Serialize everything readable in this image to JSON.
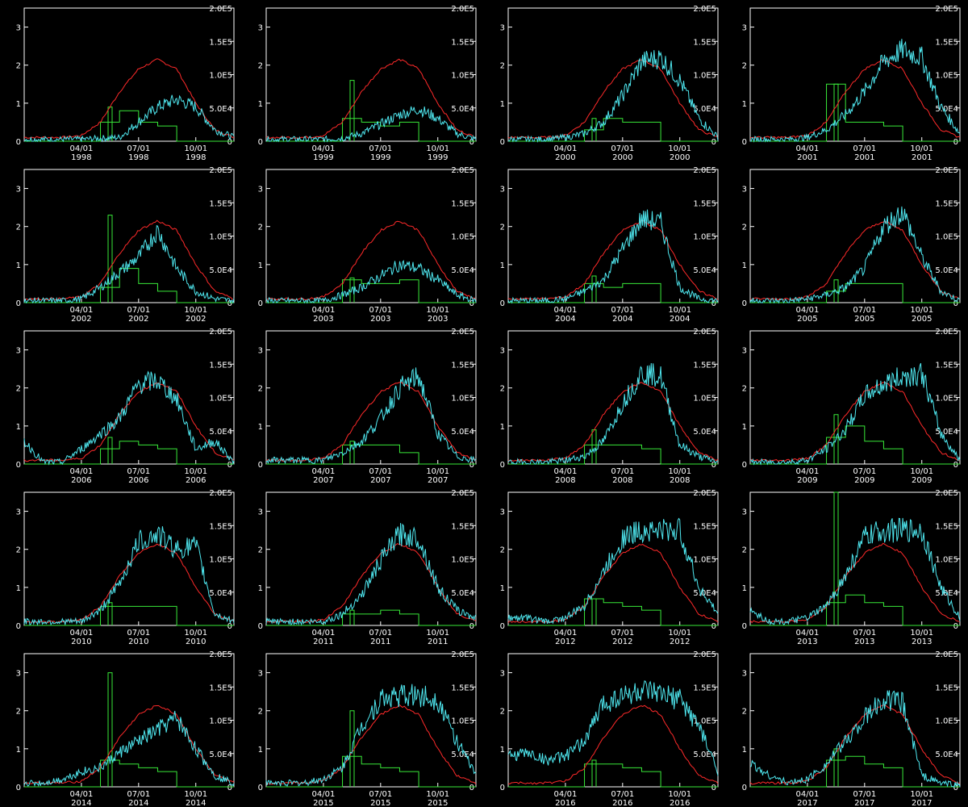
{
  "chart_data": {
    "type": "line",
    "layout": "grid of 20 panels, 4 columns x 5 rows",
    "left_axis": {
      "ylim": [
        0,
        3.5
      ],
      "ticks": [
        "0",
        "1",
        "2",
        "3"
      ]
    },
    "right_axis": {
      "ylim": [
        0,
        200000
      ],
      "ticks": [
        "0",
        "5.0E4",
        "1.0E5",
        "1.5E5",
        "2.0E5"
      ]
    },
    "x_axis": {
      "range_months": [
        1,
        12
      ],
      "tick_dates": [
        "04/01",
        "07/01",
        "10/01"
      ]
    },
    "series_colors": {
      "cyan": "#4fe8f0",
      "red": "#ff2a2a",
      "green": "#38e838"
    },
    "series_description": {
      "cyan": "noisy daily series, left axis units",
      "red": "smooth seasonal curve, left axis units",
      "green": "stepwise series, left axis units"
    },
    "panels": [
      {
        "year": "1998",
        "cyan": [
          0.05,
          0.05,
          0.05,
          0.05,
          0.08,
          0.1,
          0.5,
          0.9,
          1.1,
          0.9,
          0.3,
          0.1
        ],
        "red": [
          0.1,
          0.1,
          0.1,
          0.15,
          0.5,
          1.3,
          1.9,
          2.15,
          1.9,
          1.0,
          0.3,
          0.1
        ],
        "green": [
          0,
          0,
          0,
          0,
          0.5,
          0.8,
          0.5,
          0.4,
          0,
          0,
          0,
          0
        ],
        "green_spike": 0.9
      },
      {
        "year": "1999",
        "cyan": [
          0.05,
          0.05,
          0.05,
          0.05,
          0.08,
          0.2,
          0.45,
          0.7,
          0.85,
          0.6,
          0.2,
          0.05
        ],
        "red": [
          0.1,
          0.1,
          0.1,
          0.15,
          0.5,
          1.3,
          1.9,
          2.15,
          1.9,
          1.0,
          0.3,
          0.1
        ],
        "green": [
          0,
          0,
          0,
          0,
          0.6,
          0.5,
          0.4,
          0.5,
          0,
          0,
          0,
          0
        ],
        "green_spike": 1.6
      },
      {
        "year": "2000",
        "cyan": [
          0.05,
          0.05,
          0.05,
          0.1,
          0.2,
          0.5,
          1.2,
          2.1,
          2.2,
          1.6,
          0.6,
          0.1
        ],
        "red": [
          0.1,
          0.1,
          0.1,
          0.15,
          0.5,
          1.3,
          1.9,
          2.15,
          1.9,
          1.0,
          0.3,
          0.1
        ],
        "green": [
          0,
          0,
          0,
          0,
          0.3,
          0.6,
          0.5,
          0.5,
          0,
          0,
          0,
          0
        ],
        "green_spike": 0.6
      },
      {
        "year": "2001",
        "cyan": [
          0.05,
          0.05,
          0.05,
          0.1,
          0.3,
          0.7,
          1.3,
          2.1,
          2.4,
          2.2,
          0.9,
          0.2
        ],
        "red": [
          0.1,
          0.1,
          0.1,
          0.15,
          0.5,
          1.3,
          1.9,
          2.15,
          1.9,
          1.0,
          0.3,
          0.1
        ],
        "green": [
          0,
          0,
          0,
          0,
          1.5,
          0.5,
          0.5,
          0.4,
          0,
          0,
          0,
          0
        ],
        "green_spike": 1.5
      },
      {
        "year": "2002",
        "cyan": [
          0.05,
          0.05,
          0.05,
          0.1,
          0.4,
          0.8,
          1.2,
          1.9,
          0.9,
          0.3,
          0.1,
          0.05
        ],
        "red": [
          0.1,
          0.1,
          0.1,
          0.15,
          0.5,
          1.3,
          1.9,
          2.15,
          1.9,
          1.0,
          0.3,
          0.1
        ],
        "green": [
          0,
          0,
          0,
          0,
          0.4,
          0.9,
          0.5,
          0.3,
          0,
          0,
          0,
          0
        ],
        "green_spike": 2.3
      },
      {
        "year": "2003",
        "cyan": [
          0.05,
          0.05,
          0.05,
          0.05,
          0.2,
          0.4,
          0.7,
          1.0,
          0.9,
          0.6,
          0.2,
          0.05
        ],
        "red": [
          0.1,
          0.1,
          0.1,
          0.15,
          0.5,
          1.3,
          1.9,
          2.15,
          1.9,
          1.0,
          0.3,
          0.1
        ],
        "green": [
          0,
          0,
          0,
          0,
          0.6,
          0.5,
          0.5,
          0.6,
          0,
          0,
          0,
          0
        ],
        "green_spike": 0.65
      },
      {
        "year": "2004",
        "cyan": [
          0.05,
          0.05,
          0.05,
          0.1,
          0.3,
          0.6,
          1.4,
          2.2,
          2.1,
          0.4,
          0.1,
          0.05
        ],
        "red": [
          0.1,
          0.1,
          0.1,
          0.15,
          0.5,
          1.3,
          1.9,
          2.15,
          1.9,
          1.0,
          0.3,
          0.1
        ],
        "green": [
          0,
          0,
          0,
          0,
          0.5,
          0.4,
          0.5,
          0.5,
          0,
          0,
          0,
          0
        ],
        "green_spike": 0.7
      },
      {
        "year": "2005",
        "cyan": [
          0.05,
          0.05,
          0.05,
          0.1,
          0.2,
          0.4,
          0.9,
          2.0,
          2.4,
          1.2,
          0.3,
          0.05
        ],
        "red": [
          0.1,
          0.1,
          0.1,
          0.15,
          0.5,
          1.3,
          1.9,
          2.15,
          1.9,
          1.0,
          0.3,
          0.1
        ],
        "green": [
          0,
          0,
          0,
          0,
          0.3,
          0.5,
          0.5,
          0.5,
          0,
          0,
          0,
          0
        ],
        "green_spike": 0.6
      },
      {
        "year": "2006",
        "cyan": [
          0.6,
          0.05,
          0.05,
          0.4,
          0.8,
          1.2,
          2.1,
          2.2,
          1.7,
          0.4,
          0.6,
          0.05
        ],
        "red": [
          0.1,
          0.1,
          0.1,
          0.15,
          0.5,
          1.3,
          1.9,
          2.15,
          1.9,
          1.0,
          0.3,
          0.1
        ],
        "green": [
          0,
          0,
          0,
          0,
          0.4,
          0.6,
          0.5,
          0.4,
          0,
          0,
          0,
          0
        ],
        "green_spike": 0.7
      },
      {
        "year": "2007",
        "cyan": [
          0.1,
          0.1,
          0.1,
          0.1,
          0.3,
          0.6,
          1.2,
          2.0,
          2.3,
          0.8,
          0.2,
          0.1
        ],
        "red": [
          0.1,
          0.1,
          0.1,
          0.15,
          0.5,
          1.3,
          1.9,
          2.15,
          1.9,
          1.0,
          0.3,
          0.1
        ],
        "green": [
          0,
          0,
          0,
          0,
          0.5,
          0.5,
          0.5,
          0.3,
          0,
          0,
          0,
          0
        ],
        "green_spike": 0.6
      },
      {
        "year": "2008",
        "cyan": [
          0.05,
          0.05,
          0.05,
          0.1,
          0.2,
          0.6,
          1.6,
          2.4,
          2.3,
          0.5,
          0.2,
          0.05
        ],
        "red": [
          0.1,
          0.1,
          0.1,
          0.15,
          0.5,
          1.3,
          1.9,
          2.15,
          1.9,
          1.0,
          0.3,
          0.1
        ],
        "green": [
          0,
          0,
          0,
          0,
          0.5,
          0.5,
          0.5,
          0.4,
          0,
          0,
          0,
          0
        ],
        "green_spike": 0.9
      },
      {
        "year": "2009",
        "cyan": [
          0.05,
          0.05,
          0.05,
          0.1,
          0.4,
          0.9,
          1.8,
          2.1,
          2.3,
          2.4,
          0.8,
          0.1
        ],
        "red": [
          0.1,
          0.1,
          0.1,
          0.15,
          0.5,
          1.3,
          1.9,
          2.15,
          1.9,
          1.0,
          0.3,
          0.1
        ],
        "green": [
          0,
          0,
          0,
          0,
          0.7,
          1.0,
          0.6,
          0.4,
          0,
          0,
          0,
          0
        ],
        "green_spike": 1.3
      },
      {
        "year": "2010",
        "cyan": [
          0.1,
          0.1,
          0.1,
          0.1,
          0.4,
          1.1,
          2.2,
          2.4,
          2.0,
          2.1,
          0.3,
          0.1
        ],
        "red": [
          0.1,
          0.1,
          0.1,
          0.15,
          0.5,
          1.3,
          1.9,
          2.15,
          1.9,
          1.0,
          0.3,
          0.1
        ],
        "green": [
          0,
          0,
          0,
          0,
          0.5,
          0.5,
          0.5,
          0.5,
          0,
          0,
          0,
          0
        ],
        "green_spike": 0.6
      },
      {
        "year": "2011",
        "cyan": [
          0.1,
          0.1,
          0.1,
          0.1,
          0.3,
          0.8,
          1.7,
          2.4,
          2.3,
          1.0,
          0.4,
          0.2
        ],
        "red": [
          0.1,
          0.1,
          0.1,
          0.15,
          0.5,
          1.3,
          1.9,
          2.15,
          1.9,
          1.0,
          0.3,
          0.1
        ],
        "green": [
          0,
          0,
          0,
          0,
          0.3,
          0.3,
          0.4,
          0.3,
          0,
          0,
          0,
          0
        ],
        "green_spike": 0.4
      },
      {
        "year": "2012",
        "cyan": [
          0.2,
          0.2,
          0.1,
          0.2,
          0.5,
          1.4,
          2.3,
          2.5,
          2.5,
          2.5,
          1.0,
          0.3
        ],
        "red": [
          0.1,
          0.1,
          0.1,
          0.15,
          0.5,
          1.3,
          1.9,
          2.15,
          1.9,
          1.0,
          0.3,
          0.1
        ],
        "green": [
          0,
          0,
          0,
          0,
          0.7,
          0.6,
          0.5,
          0.4,
          0,
          0,
          0,
          0
        ],
        "green_spike": 0.7
      },
      {
        "year": "2013",
        "cyan": [
          0.4,
          0.1,
          0.1,
          0.2,
          0.5,
          1.3,
          2.3,
          2.5,
          2.5,
          2.5,
          1.0,
          0.2
        ],
        "red": [
          0.1,
          0.1,
          0.1,
          0.15,
          0.5,
          1.3,
          1.9,
          2.15,
          1.9,
          1.0,
          0.3,
          0.1
        ],
        "green": [
          0,
          0,
          0,
          0,
          0.6,
          0.8,
          0.6,
          0.5,
          0,
          0,
          0,
          0
        ],
        "green_spike": 3.5
      },
      {
        "year": "2014",
        "cyan": [
          0.1,
          0.1,
          0.2,
          0.4,
          0.5,
          0.9,
          1.2,
          1.5,
          1.8,
          1.0,
          0.3,
          0.1
        ],
        "red": [
          0.1,
          0.1,
          0.1,
          0.15,
          0.5,
          1.3,
          1.9,
          2.15,
          1.9,
          1.0,
          0.3,
          0.1
        ],
        "green": [
          0,
          0,
          0,
          0,
          0.7,
          0.6,
          0.5,
          0.4,
          0,
          0,
          0,
          0
        ],
        "green_spike": 3.0
      },
      {
        "year": "2015",
        "cyan": [
          0.1,
          0.1,
          0.1,
          0.2,
          0.5,
          1.6,
          2.3,
          2.4,
          2.4,
          2.3,
          1.2,
          0.3
        ],
        "red": [
          0.1,
          0.1,
          0.1,
          0.15,
          0.5,
          1.3,
          1.9,
          2.15,
          1.9,
          1.0,
          0.3,
          0.1
        ],
        "green": [
          0,
          0,
          0,
          0,
          0.8,
          0.6,
          0.5,
          0.4,
          0,
          0,
          0,
          0
        ],
        "green_spike": 2.0
      },
      {
        "year": "2016",
        "cyan": [
          0.8,
          0.9,
          0.7,
          0.8,
          1.2,
          2.2,
          2.4,
          2.5,
          2.4,
          2.3,
          1.6,
          0.4
        ],
        "red": [
          0.1,
          0.1,
          0.1,
          0.15,
          0.5,
          1.3,
          1.9,
          2.15,
          1.9,
          1.0,
          0.3,
          0.1
        ],
        "green": [
          0,
          0,
          0,
          0,
          0.6,
          0.6,
          0.5,
          0.4,
          0,
          0,
          0,
          0
        ],
        "green_spike": 0.7
      },
      {
        "year": "2017",
        "cyan": [
          0.6,
          0.3,
          0.1,
          0.2,
          0.6,
          1.2,
          1.8,
          2.3,
          2.2,
          0.3,
          0.1,
          0.05
        ],
        "red": [
          0.1,
          0.1,
          0.1,
          0.15,
          0.5,
          1.3,
          1.9,
          2.15,
          1.9,
          1.0,
          0.3,
          0.1
        ],
        "green": [
          0,
          0,
          0,
          0,
          0.7,
          0.8,
          0.6,
          0.5,
          0,
          0,
          0,
          0
        ],
        "green_spike": 1.0
      }
    ]
  }
}
